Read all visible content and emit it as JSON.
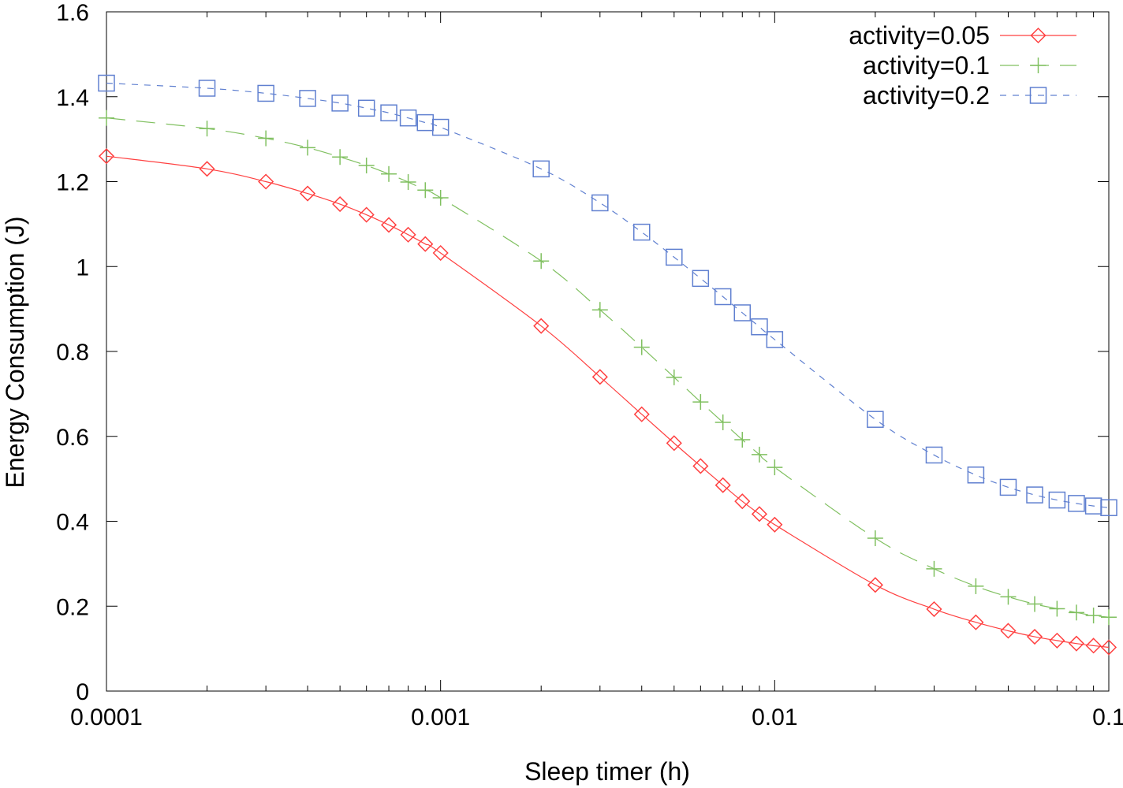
{
  "chart_data": {
    "type": "line",
    "title": "",
    "xlabel": "Sleep timer (h)",
    "ylabel": "Energy Consumption (J)",
    "xscale": "log",
    "xlim": [
      0.0001,
      0.1
    ],
    "ylim": [
      0,
      1.6
    ],
    "grid": false,
    "legend_position": "top-right",
    "x_ticks": [
      0.0001,
      0.001,
      0.01,
      0.1
    ],
    "x_tick_labels": [
      "0.0001",
      "0.001",
      "0.01",
      "0.1"
    ],
    "y_ticks": [
      0,
      0.2,
      0.4,
      0.6,
      0.8,
      1.0,
      1.2,
      1.4,
      1.6
    ],
    "y_tick_labels": [
      "0",
      "0.2",
      "0.4",
      "0.6",
      "0.8",
      "1",
      "1.2",
      "1.4",
      "1.6"
    ],
    "x": [
      0.0001,
      0.0002,
      0.0003,
      0.0004,
      0.0005,
      0.0006,
      0.0007,
      0.0008,
      0.0009,
      0.001,
      0.002,
      0.003,
      0.004,
      0.005,
      0.006,
      0.007,
      0.008,
      0.009,
      0.01,
      0.02,
      0.03,
      0.04,
      0.05,
      0.06,
      0.07,
      0.08,
      0.09,
      0.1
    ],
    "series": [
      {
        "name": "activity=0.05",
        "color": "#ff4040",
        "marker": "diamond",
        "dash": "solid",
        "values": [
          1.26,
          1.23,
          1.2,
          1.172,
          1.147,
          1.122,
          1.098,
          1.075,
          1.053,
          1.032,
          0.86,
          0.74,
          0.652,
          0.584,
          0.53,
          0.485,
          0.447,
          0.417,
          0.392,
          0.25,
          0.193,
          0.162,
          0.142,
          0.128,
          0.119,
          0.112,
          0.107,
          0.103
        ]
      },
      {
        "name": "activity=0.1",
        "color": "#80c060",
        "marker": "plus",
        "dash": "long-dash",
        "values": [
          1.35,
          1.325,
          1.302,
          1.28,
          1.258,
          1.238,
          1.218,
          1.199,
          1.18,
          1.162,
          1.013,
          0.898,
          0.81,
          0.739,
          0.681,
          0.633,
          0.592,
          0.557,
          0.527,
          0.36,
          0.288,
          0.247,
          0.222,
          0.205,
          0.194,
          0.185,
          0.178,
          0.174
        ]
      },
      {
        "name": "activity=0.2",
        "color": "#6080d0",
        "marker": "square",
        "dash": "short-dash",
        "values": [
          1.432,
          1.42,
          1.408,
          1.396,
          1.385,
          1.373,
          1.362,
          1.35,
          1.339,
          1.328,
          1.23,
          1.15,
          1.081,
          1.022,
          0.972,
          0.929,
          0.891,
          0.858,
          0.828,
          0.64,
          0.556,
          0.509,
          0.48,
          0.462,
          0.45,
          0.442,
          0.436,
          0.432
        ]
      }
    ]
  }
}
